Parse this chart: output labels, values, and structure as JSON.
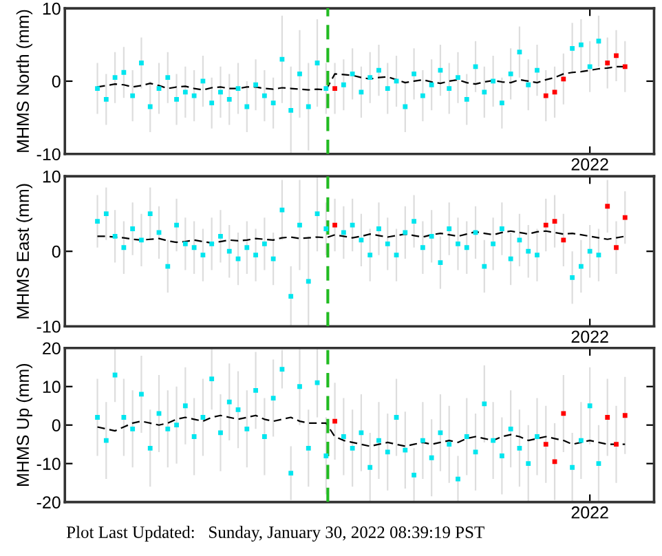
{
  "chart_data": [
    {
      "type": "scatter",
      "ylabel": "MHMS North (mm)",
      "ylim": [
        -10,
        10
      ],
      "yticks": [
        -10,
        0,
        10
      ],
      "categories": [
        null,
        null,
        null,
        null,
        null,
        null,
        null,
        null,
        null,
        null,
        null,
        null,
        null,
        null,
        null,
        null,
        null,
        null,
        null,
        null,
        null,
        null,
        null,
        null,
        null,
        null,
        null,
        null,
        null,
        null,
        null,
        null,
        null,
        null,
        null,
        null,
        null,
        null,
        null,
        null,
        null,
        null,
        null,
        null,
        null,
        null,
        null,
        null,
        null,
        null,
        null,
        null,
        null,
        null,
        null,
        null,
        "2022",
        null,
        null,
        null,
        null
      ],
      "series": [
        {
          "color": "#00e5ee",
          "marker": "square",
          "values": [
            -1,
            -2.5,
            0.5,
            1.2,
            -2,
            2.5,
            -3.5,
            -1,
            0.5,
            -2.5,
            -1.5,
            -2,
            0,
            -3,
            -1.5,
            -2.5,
            -1,
            -3.5,
            -0.5,
            -2,
            -3,
            3,
            -4,
            1,
            -3.5,
            2.5,
            -1,
            null,
            -0.5,
            1,
            -1.5,
            0.5,
            1.5,
            -1,
            0,
            -3.5,
            1,
            -2,
            -0.5,
            1.5,
            -1,
            0.5,
            -2.5,
            2,
            -1.5,
            0,
            -3,
            1,
            4,
            -0.5,
            1.5,
            null,
            null,
            null,
            4.5,
            5,
            2,
            5.5,
            null,
            null,
            null
          ],
          "errors": [
            3.5,
            3.5,
            3.5,
            3.5,
            3.5,
            3.5,
            3.5,
            3.5,
            3.5,
            3.5,
            3.5,
            3.5,
            3.5,
            3.5,
            3.5,
            3.5,
            3.5,
            3.5,
            3.5,
            3.5,
            3.5,
            6,
            6,
            6,
            6,
            6,
            3.5,
            null,
            3.5,
            3.5,
            3.5,
            3.5,
            3.5,
            3.5,
            3.5,
            3.5,
            3.5,
            3.5,
            3.5,
            3.5,
            3.5,
            3.5,
            3.5,
            3.5,
            3.5,
            3.5,
            3.5,
            3.5,
            3.5,
            3.5,
            3.5,
            null,
            null,
            null,
            3.5,
            3.5,
            3.5,
            3.5,
            null,
            null,
            null
          ]
        },
        {
          "color": "#ff0000",
          "marker": "square",
          "values": [
            null,
            null,
            null,
            null,
            null,
            null,
            null,
            null,
            null,
            null,
            null,
            null,
            null,
            null,
            null,
            null,
            null,
            null,
            null,
            null,
            null,
            null,
            null,
            null,
            null,
            null,
            null,
            -1,
            null,
            null,
            null,
            null,
            null,
            null,
            null,
            null,
            null,
            null,
            null,
            null,
            null,
            null,
            null,
            null,
            null,
            null,
            null,
            null,
            null,
            null,
            null,
            -2,
            -1.5,
            0.3,
            null,
            null,
            null,
            null,
            2.5,
            3.5,
            2
          ],
          "errors": [
            null,
            null,
            null,
            null,
            null,
            null,
            null,
            null,
            null,
            null,
            null,
            null,
            null,
            null,
            null,
            null,
            null,
            null,
            null,
            null,
            null,
            null,
            null,
            null,
            null,
            null,
            null,
            3.5,
            null,
            null,
            null,
            null,
            null,
            null,
            null,
            null,
            null,
            null,
            null,
            null,
            null,
            null,
            null,
            null,
            null,
            null,
            null,
            null,
            null,
            null,
            null,
            3.5,
            3.5,
            3.5,
            null,
            null,
            null,
            null,
            3.5,
            3.5,
            3.5
          ]
        },
        {
          "type": "line",
          "color": "#000000",
          "marker": "none",
          "line_style": "dashed",
          "values": [
            -0.8,
            -0.6,
            -0.4,
            -0.5,
            -0.8,
            -0.6,
            -0.3,
            -0.6,
            -1,
            -0.8,
            -0.7,
            -1,
            -1.2,
            -0.9,
            -0.8,
            -1,
            -1,
            -0.8,
            -0.8,
            -1,
            -1.1,
            -0.9,
            -1,
            -1.1,
            -1.2,
            -1.1,
            -1.2,
            1,
            0.9,
            0.8,
            0.5,
            0.3,
            0.5,
            0.6,
            0.2,
            -0.2,
            0,
            0.2,
            -0.1,
            -0.3,
            0,
            0.2,
            -0.2,
            -0.4,
            -0.1,
            0.1,
            -0.1,
            -0.2,
            0.2,
            0,
            -0.2,
            0.2,
            0.5,
            1,
            1.2,
            1.3,
            1.5,
            1.7,
            1.8,
            2,
            2
          ]
        }
      ]
    },
    {
      "type": "scatter",
      "ylabel": "MHMS East (mm)",
      "ylim": [
        -10,
        10
      ],
      "yticks": [
        -10,
        0,
        10
      ],
      "categories": [
        null,
        null,
        null,
        null,
        null,
        null,
        null,
        null,
        null,
        null,
        null,
        null,
        null,
        null,
        null,
        null,
        null,
        null,
        null,
        null,
        null,
        null,
        null,
        null,
        null,
        null,
        null,
        null,
        null,
        null,
        null,
        null,
        null,
        null,
        null,
        null,
        null,
        null,
        null,
        null,
        null,
        null,
        null,
        null,
        null,
        null,
        null,
        null,
        null,
        null,
        null,
        null,
        null,
        null,
        null,
        null,
        "2022",
        null,
        null,
        null,
        null
      ],
      "series": [
        {
          "color": "#00e5ee",
          "marker": "square",
          "values": [
            4,
            5,
            2,
            0.5,
            3,
            1.5,
            5,
            2.5,
            -2,
            3.5,
            1,
            0.5,
            -0.5,
            1,
            2,
            0,
            -1,
            0.5,
            -0.5,
            1,
            -1,
            5.5,
            -6,
            3.5,
            -4,
            5,
            3,
            null,
            2.5,
            3.5,
            1.5,
            -0.5,
            3,
            1,
            -0.5,
            2.5,
            4,
            0.5,
            2,
            -1.5,
            3,
            1,
            0.5,
            2.5,
            -2,
            1,
            3,
            -1,
            1.5,
            0,
            -0.5,
            null,
            null,
            null,
            -3.5,
            -2,
            0,
            -0.5,
            null,
            null,
            null
          ],
          "errors": [
            3.5,
            3.5,
            3.5,
            3.5,
            3.5,
            3.5,
            3.5,
            3.5,
            3.5,
            3.5,
            3.5,
            3.5,
            3.5,
            3.5,
            3.5,
            3.5,
            3.5,
            3.5,
            3.5,
            3.5,
            3.5,
            4,
            4,
            6,
            6,
            5,
            3.5,
            null,
            3.5,
            3.5,
            3.5,
            3.5,
            3.5,
            3.5,
            3.5,
            3.5,
            3.5,
            3.5,
            3.5,
            3.5,
            3.5,
            3.5,
            3.5,
            3.5,
            3.5,
            3.5,
            3.5,
            3.5,
            3.5,
            3.5,
            3.5,
            null,
            null,
            null,
            3.5,
            3.5,
            3.5,
            3.5,
            null,
            null,
            null
          ]
        },
        {
          "color": "#ff0000",
          "marker": "square",
          "values": [
            null,
            null,
            null,
            null,
            null,
            null,
            null,
            null,
            null,
            null,
            null,
            null,
            null,
            null,
            null,
            null,
            null,
            null,
            null,
            null,
            null,
            null,
            null,
            null,
            null,
            null,
            null,
            3.5,
            null,
            null,
            null,
            null,
            null,
            null,
            null,
            null,
            null,
            null,
            null,
            null,
            null,
            null,
            null,
            null,
            null,
            null,
            null,
            null,
            null,
            null,
            null,
            3.5,
            4,
            1.5,
            null,
            null,
            null,
            null,
            6,
            0.5,
            4.5
          ],
          "errors": [
            null,
            null,
            null,
            null,
            null,
            null,
            null,
            null,
            null,
            null,
            null,
            null,
            null,
            null,
            null,
            null,
            null,
            null,
            null,
            null,
            null,
            null,
            null,
            null,
            null,
            null,
            null,
            3.5,
            null,
            null,
            null,
            null,
            null,
            null,
            null,
            null,
            null,
            null,
            null,
            null,
            null,
            null,
            null,
            null,
            null,
            null,
            null,
            null,
            null,
            null,
            null,
            3.5,
            3.5,
            3.5,
            null,
            null,
            null,
            null,
            3.5,
            3.5,
            3.5
          ]
        },
        {
          "type": "line",
          "color": "#000000",
          "marker": "none",
          "line_style": "dashed",
          "values": [
            2,
            2,
            1.9,
            1.8,
            1.6,
            1.5,
            1.6,
            1.7,
            1.4,
            1.2,
            1.3,
            1.5,
            1.3,
            1.1,
            1.3,
            1.5,
            1.4,
            1.5,
            1.7,
            1.6,
            1.5,
            1.8,
            1.9,
            1.7,
            1.8,
            1.9,
            1.8,
            2.2,
            2,
            1.8,
            2,
            2.3,
            2.1,
            1.9,
            2.1,
            2.3,
            2.1,
            1.9,
            2.2,
            2.4,
            2.2,
            2,
            2.3,
            2.6,
            2.4,
            2.2,
            2.5,
            2.7,
            2.5,
            2.3,
            2.6,
            2.7,
            2.5,
            2.3,
            2.4,
            2.2,
            2,
            1.8,
            1.6,
            1.8,
            2
          ]
        }
      ]
    },
    {
      "type": "scatter",
      "ylabel": "MHMS Up (mm)",
      "ylim": [
        -20,
        20
      ],
      "yticks": [
        -20,
        -10,
        0,
        10,
        20
      ],
      "categories": [
        null,
        null,
        null,
        null,
        null,
        null,
        null,
        null,
        null,
        null,
        null,
        null,
        null,
        null,
        null,
        null,
        null,
        null,
        null,
        null,
        null,
        null,
        null,
        null,
        null,
        null,
        null,
        null,
        null,
        null,
        null,
        null,
        null,
        null,
        null,
        null,
        null,
        null,
        null,
        null,
        null,
        null,
        null,
        null,
        null,
        null,
        null,
        null,
        null,
        null,
        null,
        null,
        null,
        null,
        null,
        null,
        "2022",
        null,
        null,
        null,
        null
      ],
      "annotations": [
        "Plot Last Updated:   Sunday, January 30, 2022 08:39:19 PST"
      ],
      "series": [
        {
          "color": "#00e5ee",
          "marker": "square",
          "values": [
            2,
            -4,
            13,
            2,
            -1,
            8,
            -6,
            3,
            -1,
            0,
            5,
            -3,
            2,
            12,
            -2,
            6,
            4,
            -1,
            9,
            -3,
            7,
            14.5,
            -12.5,
            10,
            -6,
            11,
            -8,
            null,
            -3,
            -6,
            -2,
            -11,
            -4,
            -7,
            2,
            -6.5,
            -13,
            -4,
            -8.5,
            -2,
            -5,
            -14,
            -3,
            -7,
            5.5,
            -4,
            -8,
            -1,
            -6,
            -10,
            -3,
            null,
            null,
            null,
            -11,
            -4,
            5,
            -10,
            null,
            null,
            null
          ],
          "errors": [
            10,
            10,
            7,
            10,
            10,
            10,
            10,
            10,
            10,
            10,
            10,
            10,
            10,
            8,
            10,
            10,
            10,
            10,
            10,
            10,
            10,
            5,
            7,
            10,
            10,
            9,
            10,
            null,
            10,
            10,
            10,
            9,
            10,
            10,
            10,
            10,
            7,
            10,
            10,
            10,
            10,
            6,
            10,
            10,
            10,
            10,
            10,
            10,
            10,
            10,
            10,
            null,
            null,
            null,
            9,
            10,
            10,
            10,
            null,
            null,
            null
          ]
        },
        {
          "color": "#ff0000",
          "marker": "square",
          "values": [
            null,
            null,
            null,
            null,
            null,
            null,
            null,
            null,
            null,
            null,
            null,
            null,
            null,
            null,
            null,
            null,
            null,
            null,
            null,
            null,
            null,
            null,
            null,
            null,
            null,
            null,
            null,
            1,
            null,
            null,
            null,
            null,
            null,
            null,
            null,
            null,
            null,
            null,
            null,
            null,
            null,
            null,
            null,
            null,
            null,
            null,
            null,
            null,
            null,
            null,
            null,
            -5,
            -9.5,
            3,
            null,
            null,
            null,
            null,
            2,
            -5,
            2.5
          ],
          "errors": [
            null,
            null,
            null,
            null,
            null,
            null,
            null,
            null,
            null,
            null,
            null,
            null,
            null,
            null,
            null,
            null,
            null,
            null,
            null,
            null,
            null,
            null,
            null,
            null,
            null,
            null,
            null,
            10,
            null,
            null,
            null,
            null,
            null,
            null,
            null,
            null,
            null,
            null,
            null,
            null,
            null,
            null,
            null,
            null,
            null,
            null,
            null,
            null,
            null,
            null,
            null,
            10,
            10,
            10,
            null,
            null,
            null,
            null,
            10,
            10,
            10
          ]
        },
        {
          "type": "line",
          "color": "#000000",
          "marker": "none",
          "line_style": "dashed",
          "values": [
            -0.5,
            -1,
            -1.5,
            -0.5,
            0.5,
            1,
            0.5,
            0,
            0.5,
            1.5,
            2,
            1.5,
            1,
            2,
            2.5,
            2,
            1.5,
            2,
            2.5,
            1.5,
            1,
            1.5,
            2,
            1,
            0.5,
            0.5,
            0.5,
            -3,
            -4,
            -4.5,
            -5,
            -5.5,
            -5,
            -4.5,
            -5,
            -5.5,
            -5,
            -4.5,
            -5,
            -4.5,
            -4,
            -4.5,
            -3.5,
            -3,
            -3.5,
            -4,
            -3,
            -2.5,
            -3,
            -4,
            -3.5,
            -3,
            -3.5,
            -4,
            -5,
            -4.5,
            -4,
            -4.5,
            -5,
            -5,
            -5
          ]
        }
      ]
    }
  ]
}
